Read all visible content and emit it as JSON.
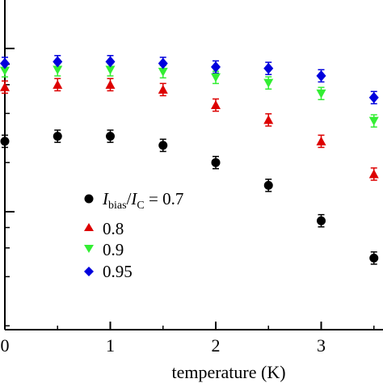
{
  "chart_data": {
    "type": "scatter",
    "xlabel": "temperature (K)",
    "x_ticks": [
      0,
      1,
      2,
      3
    ],
    "xlim": [
      -0.05,
      3.55
    ],
    "y_scale": "log",
    "y_minor_ticks": [
      2,
      4,
      6,
      8
    ],
    "grid": false,
    "legend_position": "left-lower",
    "legend_header": {
      "var1": "I",
      "sub1": "bias",
      "slash": "/",
      "var2": "I",
      "sub2": "C",
      "eq": " = 0.7"
    },
    "x": [
      0,
      0.5,
      1,
      1.5,
      2,
      2.5,
      3,
      3.5
    ],
    "series": [
      {
        "label": "0.7",
        "marker": "circle",
        "color": "#000000",
        "y": [
          0.27,
          0.29,
          0.29,
          0.255,
          0.2,
          0.145,
          0.088,
          0.052
        ]
      },
      {
        "label": "0.8",
        "marker": "triangle-up",
        "color": "#dd0000",
        "y": [
          0.58,
          0.6,
          0.6,
          0.56,
          0.45,
          0.365,
          0.27,
          0.17
        ]
      },
      {
        "label": "0.9",
        "marker": "triangle-down",
        "color": "#33ee33",
        "y": [
          0.73,
          0.74,
          0.74,
          0.72,
          0.665,
          0.615,
          0.53,
          0.36
        ]
      },
      {
        "label": "0.95",
        "marker": "diamond",
        "color": "#0000dd",
        "y": [
          0.81,
          0.83,
          0.83,
          0.81,
          0.77,
          0.755,
          0.68,
          0.5
        ]
      }
    ]
  }
}
